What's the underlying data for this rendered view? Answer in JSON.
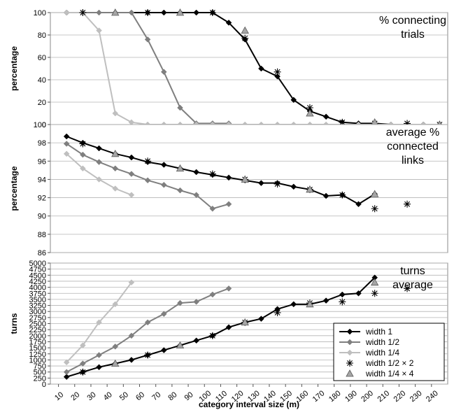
{
  "chart_data": [
    {
      "type": "line",
      "title": "% connecting trials",
      "title_lines": [
        "% connecting",
        "trials"
      ],
      "ylabel": "percentage",
      "ylim": [
        0,
        100
      ],
      "yticks": [
        0,
        20,
        40,
        60,
        80,
        100
      ],
      "grid": true,
      "series": [
        {
          "name": "width 1",
          "color": "#000000",
          "marker": "diamond",
          "x": [
            15,
            25,
            65,
            75,
            85,
            95,
            105,
            115,
            125,
            135,
            145,
            155,
            165,
            175,
            185,
            195,
            205,
            215,
            225,
            235,
            245
          ],
          "y": [
            100,
            100,
            100,
            100,
            100,
            100,
            100,
            91,
            76,
            50,
            43,
            22,
            12,
            7,
            2,
            1,
            1,
            0,
            0,
            0,
            0
          ]
        },
        {
          "name": "width 1/2",
          "color": "#7f7f7f",
          "marker": "diamond",
          "x": [
            15,
            25,
            35,
            45,
            55,
            65,
            75,
            85,
            95,
            105,
            115
          ],
          "y": [
            100,
            100,
            100,
            100,
            100,
            76,
            47,
            15,
            1,
            1,
            1
          ]
        },
        {
          "name": "width 1/4",
          "color": "#bfbfbf",
          "marker": "diamond",
          "x": [
            15,
            25,
            35,
            45,
            55,
            65,
            75,
            85,
            95,
            105,
            115,
            125,
            135,
            145,
            155,
            165,
            175,
            185,
            195,
            205,
            215,
            225,
            235,
            245
          ],
          "y": [
            100,
            100,
            84,
            10,
            2,
            0,
            0,
            0,
            0,
            0,
            0,
            0,
            0,
            0,
            0,
            0,
            0,
            0,
            0,
            0,
            0,
            0,
            0,
            0
          ]
        },
        {
          "name": "width 1/2 × 2",
          "color": "#000000",
          "marker": "star",
          "x": [
            25,
            65,
            105,
            125,
            145,
            165,
            185,
            205,
            225,
            245
          ],
          "y": [
            100,
            100,
            100,
            77,
            47,
            15,
            2,
            1,
            1,
            0
          ]
        },
        {
          "name": "width 1/4 × 4",
          "color": "#7f7f7f",
          "marker": "triangle",
          "x": [
            45,
            85,
            125,
            165,
            205,
            245
          ],
          "y": [
            100,
            100,
            84,
            10,
            2,
            0
          ]
        }
      ]
    },
    {
      "type": "line",
      "title": "average % connected links",
      "title_lines": [
        "average %",
        "connected",
        "links"
      ],
      "ylabel": "percentage",
      "ylim": [
        86,
        100
      ],
      "yticks": [
        86,
        88,
        90,
        92,
        94,
        96,
        98,
        100
      ],
      "grid": true,
      "series": [
        {
          "name": "width 1",
          "color": "#000000",
          "marker": "diamond",
          "x": [
            15,
            25,
            35,
            45,
            55,
            65,
            75,
            85,
            95,
            105,
            115,
            125,
            135,
            145,
            155,
            165,
            175,
            185,
            195,
            205
          ],
          "y": [
            98.7,
            98.0,
            97.4,
            96.8,
            96.4,
            95.9,
            95.6,
            95.2,
            94.8,
            94.5,
            94.2,
            93.9,
            93.6,
            93.6,
            93.2,
            92.9,
            92.2,
            92.3,
            91.3,
            92.4
          ]
        },
        {
          "name": "width 1/2",
          "color": "#7f7f7f",
          "marker": "diamond",
          "x": [
            15,
            25,
            35,
            45,
            55,
            65,
            75,
            85,
            95,
            105,
            115
          ],
          "y": [
            97.9,
            96.7,
            95.9,
            95.2,
            94.6,
            93.9,
            93.4,
            92.8,
            92.3,
            90.8,
            91.3
          ]
        },
        {
          "name": "width 1/4",
          "color": "#bfbfbf",
          "marker": "diamond",
          "x": [
            15,
            25,
            35,
            45,
            55
          ],
          "y": [
            96.8,
            95.2,
            94.0,
            93.0,
            92.3
          ]
        },
        {
          "name": "width 1/2 × 2",
          "color": "#000000",
          "marker": "star",
          "x": [
            25,
            65,
            105,
            125,
            145,
            165,
            185,
            205,
            225
          ],
          "y": [
            97.9,
            96.0,
            94.6,
            94.0,
            93.5,
            92.9,
            92.3,
            90.8,
            91.3
          ]
        },
        {
          "name": "width 1/4 × 4",
          "color": "#7f7f7f",
          "marker": "triangle",
          "x": [
            45,
            85,
            125,
            165,
            205
          ],
          "y": [
            96.8,
            95.2,
            94.0,
            92.9,
            92.4
          ]
        }
      ]
    },
    {
      "type": "line",
      "title": "turns average",
      "title_lines": [
        "turns",
        "average"
      ],
      "ylabel": "turns",
      "xlabel": "category interval size (m)",
      "ylim": [
        0,
        5000
      ],
      "yticks": [
        0,
        250,
        500,
        750,
        1000,
        1250,
        1500,
        1750,
        2000,
        2250,
        2500,
        2750,
        3000,
        3250,
        3500,
        3750,
        4000,
        4250,
        4500,
        4750,
        5000
      ],
      "xticks": [
        10,
        20,
        30,
        40,
        50,
        60,
        70,
        80,
        90,
        100,
        110,
        120,
        130,
        140,
        150,
        160,
        170,
        180,
        190,
        200,
        210,
        220,
        230,
        240
      ],
      "grid": true,
      "legend_position": "bottom-right",
      "series": [
        {
          "name": "width 1",
          "color": "#000000",
          "marker": "diamond",
          "x": [
            15,
            25,
            35,
            45,
            55,
            65,
            75,
            85,
            95,
            105,
            115,
            125,
            135,
            145,
            155,
            165,
            175,
            185,
            195,
            205
          ],
          "y": [
            300,
            500,
            700,
            850,
            1000,
            1200,
            1400,
            1600,
            1800,
            2000,
            2350,
            2550,
            2700,
            3100,
            3300,
            3300,
            3450,
            3700,
            3750,
            4400
          ]
        },
        {
          "name": "width 1/2",
          "color": "#7f7f7f",
          "marker": "diamond",
          "x": [
            15,
            25,
            35,
            45,
            55,
            65,
            75,
            85,
            95,
            105,
            115
          ],
          "y": [
            500,
            850,
            1200,
            1550,
            2000,
            2550,
            2900,
            3350,
            3400,
            3700,
            3950
          ]
        },
        {
          "name": "width 1/4",
          "color": "#bfbfbf",
          "marker": "diamond",
          "x": [
            15,
            25,
            35,
            45,
            55
          ],
          "y": [
            900,
            1600,
            2550,
            3300,
            4200
          ]
        },
        {
          "name": "width 1/2 × 2",
          "color": "#000000",
          "marker": "star",
          "x": [
            25,
            65,
            105,
            125,
            145,
            165,
            185,
            205,
            225
          ],
          "y": [
            500,
            1200,
            2000,
            2550,
            2950,
            3350,
            3400,
            3750,
            3950
          ]
        },
        {
          "name": "width 1/4 × 4",
          "color": "#7f7f7f",
          "marker": "triangle",
          "x": [
            45,
            85,
            125,
            165,
            205
          ],
          "y": [
            850,
            1600,
            2550,
            3300,
            4200
          ]
        }
      ]
    }
  ]
}
